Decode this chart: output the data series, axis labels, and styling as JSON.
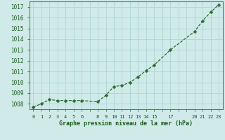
{
  "x": [
    0,
    1,
    2,
    3,
    4,
    5,
    6,
    8,
    9,
    10,
    11,
    12,
    13,
    14,
    15,
    17,
    20,
    21,
    22,
    23
  ],
  "y": [
    1007.7,
    1008.0,
    1008.4,
    1008.3,
    1008.3,
    1008.3,
    1008.3,
    1008.2,
    1008.8,
    1009.6,
    1009.7,
    1010.0,
    1010.5,
    1011.1,
    1011.6,
    1013.0,
    1014.7,
    1015.7,
    1016.5,
    1017.2
  ],
  "xlim": [
    -0.5,
    23.5
  ],
  "ylim": [
    1007.5,
    1017.5
  ],
  "yticks": [
    1008,
    1009,
    1010,
    1011,
    1012,
    1013,
    1014,
    1015,
    1016,
    1017
  ],
  "xticks": [
    0,
    1,
    2,
    3,
    4,
    5,
    6,
    7,
    8,
    9,
    10,
    11,
    12,
    13,
    14,
    15,
    16,
    17,
    18,
    19,
    20,
    21,
    22,
    23
  ],
  "xtick_labels": [
    "0",
    "1",
    "2",
    "3",
    "4",
    "5",
    "6",
    "",
    "8",
    "9",
    "10",
    "11",
    "12",
    "13",
    "14",
    "15",
    "",
    "17",
    "",
    "",
    "20",
    "21",
    "22",
    "23"
  ],
  "xlabel": "Graphe pression niveau de la mer (hPa)",
  "line_color": "#1a5c1a",
  "marker_color": "#2a6e2a",
  "bg_color": "#d0eaea",
  "grid_color": "#b0d8d8",
  "tick_color": "#1a5c1a",
  "label_color": "#1a5c1a",
  "border_color": "#4a8a4a"
}
